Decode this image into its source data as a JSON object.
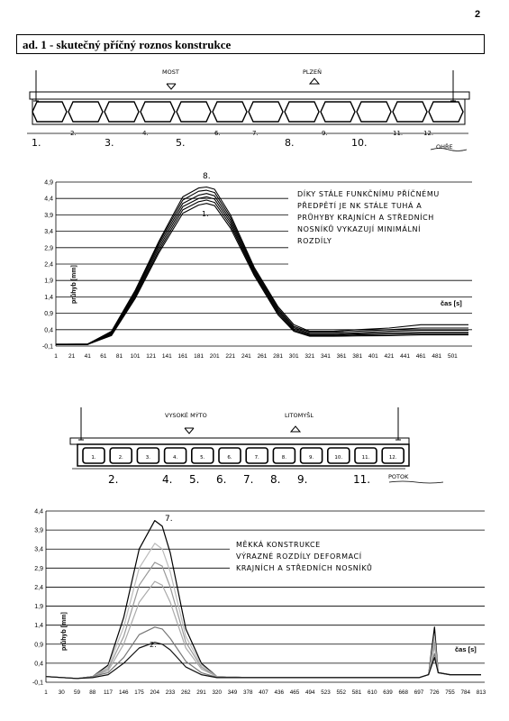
{
  "page_number": "2",
  "header": "ad. 1 - skutečný příčný roznos konstrukce",
  "bridge1": {
    "label_left": "MOST",
    "label_right": "PLZEŇ",
    "beam_numbers": [
      "1.",
      "2.",
      "3.",
      "4.",
      "5.",
      "6.",
      "7.",
      "8.",
      "9.",
      "10.",
      "11.",
      "12."
    ],
    "river": "OHŘE"
  },
  "bridge2": {
    "label_left": "VYSOKÉ MÝTO",
    "label_right": "LITOMYŠL",
    "box_numbers": [
      "1.",
      "2.",
      "3.",
      "4.",
      "5.",
      "6.",
      "7.",
      "8.",
      "9.",
      "10.",
      "11.",
      "12."
    ],
    "below_numbers": [
      "2.",
      "4.",
      "5.",
      "6.",
      "7.",
      "8.",
      "9.",
      "11."
    ],
    "river": "POTOK"
  },
  "chart_data": [
    {
      "type": "line",
      "ylabel": "průhyb [mm]",
      "xlabel": "čas [s]",
      "ylim": [
        -0.1,
        4.9
      ],
      "y_ticks": [
        "4,9",
        "4,4",
        "3,9",
        "3,4",
        "2,9",
        "2,4",
        "1,9",
        "1,4",
        "0,9",
        "0,4",
        "-0,1"
      ],
      "x_ticks": [
        "1",
        "21",
        "41",
        "61",
        "81",
        "101",
        "121",
        "141",
        "161",
        "181",
        "201",
        "221",
        "241",
        "261",
        "281",
        "301",
        "321",
        "341",
        "361",
        "381",
        "401",
        "421",
        "441",
        "461",
        "481",
        "501"
      ],
      "x": [
        1,
        41,
        71,
        101,
        131,
        161,
        181,
        191,
        201,
        221,
        251,
        281,
        301,
        321,
        351,
        381,
        421,
        461,
        501,
        521
      ],
      "series": [
        {
          "values": [
            -0.04,
            -0.04,
            0.35,
            1.6,
            3.1,
            4.45,
            4.72,
            4.75,
            4.68,
            3.9,
            2.3,
            1.1,
            0.55,
            0.35,
            0.35,
            0.4,
            0.45,
            0.55,
            0.55,
            0.55
          ]
        },
        {
          "values": [
            -0.05,
            -0.04,
            0.33,
            1.55,
            3.05,
            4.35,
            4.62,
            4.65,
            4.58,
            3.82,
            2.25,
            1.05,
            0.5,
            0.32,
            0.32,
            0.35,
            0.4,
            0.45,
            0.45,
            0.45
          ]
        },
        {
          "values": [
            -0.05,
            -0.04,
            0.3,
            1.5,
            2.98,
            4.25,
            4.5,
            4.55,
            4.48,
            3.74,
            2.2,
            1.0,
            0.46,
            0.28,
            0.28,
            0.3,
            0.35,
            0.38,
            0.38,
            0.38
          ]
        },
        {
          "values": [
            -0.06,
            -0.05,
            0.28,
            1.45,
            2.9,
            4.15,
            4.4,
            4.45,
            4.38,
            3.66,
            2.15,
            0.95,
            0.42,
            0.25,
            0.25,
            0.27,
            0.3,
            0.32,
            0.32,
            0.32
          ]
        },
        {
          "values": [
            -0.06,
            -0.05,
            0.25,
            1.4,
            2.82,
            4.05,
            4.3,
            4.35,
            4.28,
            3.58,
            2.1,
            0.9,
            0.38,
            0.22,
            0.22,
            0.24,
            0.26,
            0.28,
            0.28,
            0.28
          ]
        },
        {
          "values": [
            -0.06,
            -0.05,
            0.22,
            1.35,
            2.75,
            3.95,
            4.2,
            4.25,
            4.18,
            3.5,
            2.05,
            0.85,
            0.35,
            0.2,
            0.2,
            0.21,
            0.22,
            0.24,
            0.24,
            0.24
          ]
        }
      ],
      "labels": {
        "top": "8.",
        "inner": "1."
      },
      "annotation": [
        "DÍKY STÁLE FUNKČNÍMU PŘÍČNÉMU",
        "PŘEDPĚTÍ JE NK STÁLE TUHÁ A",
        "PRŮHYBY KRAJNÍCH A STŘEDNÍCH",
        "NOSNÍKŮ VYKAZUJÍ MINIMÁLNÍ",
        "ROZDÍLY"
      ]
    },
    {
      "type": "line",
      "ylabel": "průhyb [mm]",
      "xlabel": "čas [s]",
      "ylim": [
        -0.1,
        4.4
      ],
      "y_ticks": [
        "4,4",
        "3,9",
        "3,4",
        "2,9",
        "2,4",
        "1,9",
        "1,4",
        "0,9",
        "0,4",
        "-0,1"
      ],
      "x_ticks": [
        "1",
        "30",
        "59",
        "88",
        "117",
        "146",
        "175",
        "204",
        "233",
        "262",
        "291",
        "320",
        "349",
        "378",
        "407",
        "436",
        "465",
        "494",
        "523",
        "552",
        "581",
        "610",
        "639",
        "668",
        "697",
        "726",
        "755",
        "784",
        "813"
      ],
      "x": [
        1,
        59,
        88,
        117,
        146,
        175,
        204,
        218,
        233,
        262,
        291,
        320,
        378,
        465,
        552,
        639,
        697,
        715,
        726,
        733,
        755,
        813
      ],
      "series": [
        {
          "values": [
            0.05,
            0.0,
            0.05,
            0.35,
            1.6,
            3.4,
            4.15,
            4.0,
            3.3,
            1.3,
            0.4,
            0.05,
            0.02,
            0.02,
            0.02,
            0.02,
            0.02,
            0.1,
            1.35,
            0.15,
            0.1,
            0.1
          ]
        },
        {
          "values": [
            0.05,
            0.0,
            0.05,
            0.3,
            1.35,
            2.9,
            3.55,
            3.4,
            2.8,
            1.1,
            0.35,
            0.05,
            0.02,
            0.02,
            0.02,
            0.02,
            0.02,
            0.1,
            1.1,
            0.15,
            0.1,
            0.1
          ]
        },
        {
          "values": [
            0.05,
            0.0,
            0.05,
            0.25,
            1.1,
            2.45,
            3.05,
            2.95,
            2.4,
            0.95,
            0.3,
            0.05,
            0.02,
            0.02,
            0.02,
            0.02,
            0.02,
            0.1,
            0.95,
            0.15,
            0.1,
            0.1
          ]
        },
        {
          "values": [
            0.05,
            0.0,
            0.05,
            0.2,
            0.9,
            2.0,
            2.55,
            2.45,
            2.0,
            0.8,
            0.25,
            0.05,
            0.02,
            0.02,
            0.02,
            0.02,
            0.02,
            0.1,
            0.85,
            0.15,
            0.1,
            0.1
          ]
        },
        {
          "values": [
            0.05,
            0.0,
            0.05,
            0.15,
            0.55,
            1.15,
            1.35,
            1.3,
            1.05,
            0.45,
            0.15,
            0.03,
            0.02,
            0.02,
            0.02,
            0.02,
            0.02,
            0.1,
            0.65,
            0.15,
            0.1,
            0.1
          ]
        },
        {
          "values": [
            0.05,
            0.0,
            0.02,
            0.1,
            0.4,
            0.8,
            0.95,
            0.9,
            0.75,
            0.3,
            0.1,
            0.02,
            0.02,
            0.02,
            0.02,
            0.02,
            0.02,
            0.1,
            0.55,
            0.15,
            0.1,
            0.1
          ]
        }
      ],
      "labels": {
        "top": "7.",
        "inner": "2."
      },
      "annotation": [
        "MĚKKÁ KONSTRUKCE",
        "VÝRAZNÉ ROZDÍLY DEFORMACÍ",
        "KRAJNÍCH A STŘEDNÍCH NOSNÍKŮ"
      ]
    }
  ]
}
